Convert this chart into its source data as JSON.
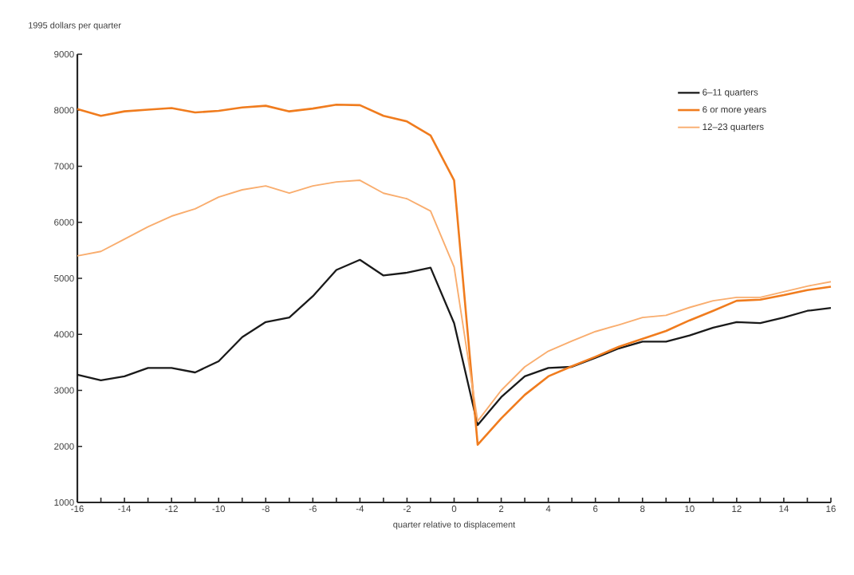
{
  "chart_data": {
    "type": "line",
    "ylabel": "1995 dollars per quarter",
    "xlabel": "quarter relative to displacement",
    "x": [
      -16,
      -15,
      -14,
      -13,
      -12,
      -11,
      -10,
      -9,
      -8,
      -7,
      -6,
      -5,
      -4,
      -3,
      -2,
      -1,
      0,
      1,
      2,
      3,
      4,
      5,
      6,
      7,
      8,
      9,
      10,
      11,
      12,
      13,
      14,
      15,
      16
    ],
    "series": [
      {
        "name": "6–11 quarters",
        "color": "#1a1a1a",
        "values": [
          3280,
          3180,
          3250,
          3400,
          3400,
          3320,
          3520,
          3950,
          4220,
          4300,
          4680,
          5150,
          5330,
          5050,
          5100,
          5190,
          4200,
          2380,
          2880,
          3250,
          3400,
          3420,
          3580,
          3750,
          3870,
          3870,
          3980,
          4120,
          4220,
          4200,
          4300,
          4420,
          4470
        ]
      },
      {
        "name": "6 or more years",
        "color": "#f07c1e",
        "values": [
          8020,
          7900,
          7980,
          8010,
          8040,
          7960,
          7990,
          8050,
          8080,
          7980,
          8030,
          8100,
          8090,
          7900,
          7800,
          7550,
          6750,
          2030,
          2500,
          2920,
          3250,
          3430,
          3600,
          3780,
          3920,
          4060,
          4250,
          4420,
          4600,
          4620,
          4700,
          4790,
          4850
        ]
      },
      {
        "name": "12–23 quarters",
        "color": "#f9ad6e",
        "values": [
          5400,
          5480,
          5700,
          5920,
          6110,
          6240,
          6450,
          6580,
          6650,
          6520,
          6650,
          6720,
          6750,
          6520,
          6420,
          6200,
          5200,
          2450,
          3000,
          3420,
          3700,
          3880,
          4050,
          4170,
          4300,
          4340,
          4480,
          4600,
          4660,
          4660,
          4760,
          4860,
          4940
        ]
      }
    ],
    "xlim": [
      -16,
      16
    ],
    "xticks": [
      -16,
      {
        "value": -15,
        "label": null
      },
      -14,
      {
        "value": -13,
        "label": null
      },
      -12,
      {
        "value": -11,
        "label": null
      },
      -10,
      {
        "value": -9,
        "label": null
      },
      -8,
      {
        "value": -7,
        "label": null
      },
      -6,
      {
        "value": -5,
        "label": null
      },
      -4,
      {
        "value": -3,
        "label": null
      },
      -2,
      {
        "value": -1,
        "label": null
      },
      0,
      {
        "value": 1,
        "label": null
      },
      2,
      {
        "value": 3,
        "label": null
      },
      4,
      {
        "value": 5,
        "label": null
      },
      6,
      {
        "value": 7,
        "label": null
      },
      8,
      {
        "value": 9,
        "label": null
      },
      10,
      {
        "value": 11,
        "label": null
      },
      12,
      {
        "value": 13,
        "label": null
      },
      14,
      {
        "value": 15,
        "label": null
      },
      16
    ],
    "ylim": [
      1000,
      9000
    ],
    "yticks": [
      1000,
      2000,
      3000,
      4000,
      5000,
      6000,
      7000,
      8000,
      9000
    ],
    "grid": false,
    "legend": "top right",
    "marker": "none",
    "line_style": "solid"
  }
}
